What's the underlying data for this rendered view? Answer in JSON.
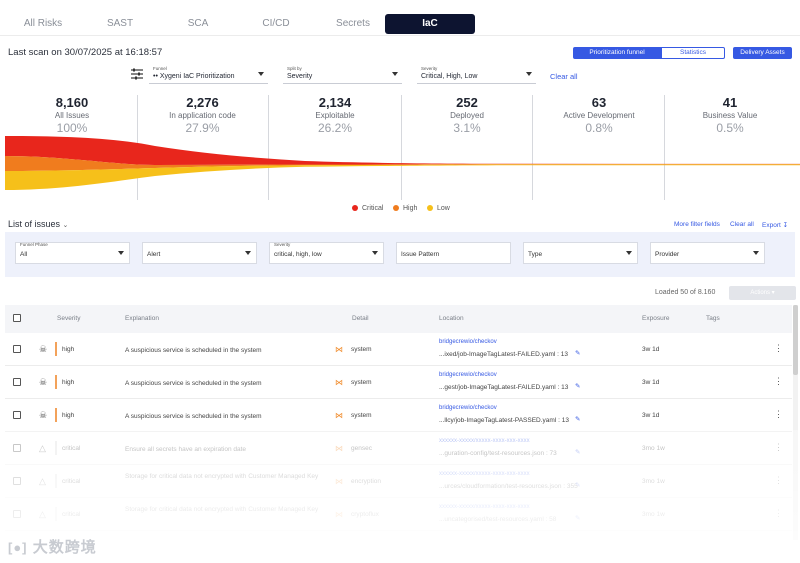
{
  "tabs": [
    {
      "label": "All Risks"
    },
    {
      "label": "SAST"
    },
    {
      "label": "SCA"
    },
    {
      "label": "CI/CD"
    },
    {
      "label": "Secrets"
    },
    {
      "label": "IaC"
    }
  ],
  "active_tab": "IaC",
  "last_scan": "Last scan on 30/07/2025 at 16:18:57",
  "view_toggle": {
    "prioritization": "Prioritization funnel",
    "statistics": "Statistics"
  },
  "delivery_assets": "Delivery Assets",
  "top_filters": {
    "funnel": {
      "label": "Funnel",
      "value": "•• Xygeni IaC Prioritization"
    },
    "split_by": {
      "label": "Split by",
      "value": "Severity"
    },
    "severity": {
      "label": "Severity",
      "value": "Critical, High, Low"
    },
    "clear_all": "Clear all"
  },
  "funnel_stats": [
    {
      "num": "8,160",
      "name": "All Issues",
      "pct": "100%"
    },
    {
      "num": "2,276",
      "name": "In application code",
      "pct": "27.9%"
    },
    {
      "num": "2,134",
      "name": "Exploitable",
      "pct": "26.2%"
    },
    {
      "num": "252",
      "name": "Deployed",
      "pct": "3.1%"
    },
    {
      "num": "63",
      "name": "Active Development",
      "pct": "0.8%"
    },
    {
      "num": "41",
      "name": "Business Value",
      "pct": "0.5%"
    }
  ],
  "legend": [
    {
      "label": "Critical",
      "color": "#e8261c"
    },
    {
      "label": "High",
      "color": "#f07c1e"
    },
    {
      "label": "Low",
      "color": "#f6c01a"
    }
  ],
  "list": {
    "title": "List of issues",
    "more_filters": "More filter fields",
    "clear_all": "Clear all",
    "export": "Export"
  },
  "issue_filters": {
    "funnel_phase": {
      "label": "Funnel Phase",
      "value": "All"
    },
    "alert": {
      "value": "Alert"
    },
    "severity": {
      "label": "Severity",
      "value": "critical, high, low"
    },
    "issue_pattern": {
      "value": "Issue Pattern"
    },
    "type": {
      "value": "Type"
    },
    "provider": {
      "value": "Provider"
    }
  },
  "loaded": "Loaded 50 of 8.160",
  "actions": "Actions",
  "columns": {
    "severity": "Severity",
    "explanation": "Explanation",
    "detail": "Detail",
    "location": "Location",
    "exposure": "Exposure",
    "tags": "Tags"
  },
  "rows": [
    {
      "severity": "high",
      "explanation": "A suspicious service is scheduled in the system",
      "detail": "system",
      "repo": "bridgecrewio/checkov",
      "path": "...ixed/job-ImageTagLatest-FAILED.yaml : 13",
      "exposure": "3w 1d"
    },
    {
      "severity": "high",
      "explanation": "A suspicious service is scheduled in the system",
      "detail": "system",
      "repo": "bridgecrewio/checkov",
      "path": "...gest/job-ImageTagLatest-FAILED.yaml : 13",
      "exposure": "3w 1d"
    },
    {
      "severity": "high",
      "explanation": "A suspicious service is scheduled in the system",
      "detail": "system",
      "repo": "bridgecrewio/checkov",
      "path": "...llcy/job-ImageTagLatest-PASSED.yaml : 13",
      "exposure": "3w 1d"
    },
    {
      "severity": "critical",
      "explanation": "Ensure all secrets have an expiration date",
      "detail": "gensec",
      "repo": "xxxxxx-xxxxx/xxxxx-xxxx-xxx-xxxx",
      "path": "...guration-config/test-resources.json : 73",
      "exposure": "3mo 1w"
    },
    {
      "severity": "critical",
      "explanation": "Storage for critical data not encrypted with Customer Managed Key",
      "detail": "encryption",
      "repo": "xxxxxx-xxxxx/xxxxx-xxxx-xxx-xxxx",
      "path": "...urces/cloudformation/test-resources.json : 355",
      "exposure": "3mo 1w"
    },
    {
      "severity": "critical",
      "explanation": "Storage for critical data not encrypted with Customer Managed Key",
      "detail": "cryptoflux",
      "repo": "xxxxxx-xxxxx/xxxxx-xxxx-xxx-xxxx",
      "path": "...uncategorised/test-resources.yaml : 58",
      "exposure": "3mo 1w"
    }
  ],
  "watermark": "大数跨境"
}
